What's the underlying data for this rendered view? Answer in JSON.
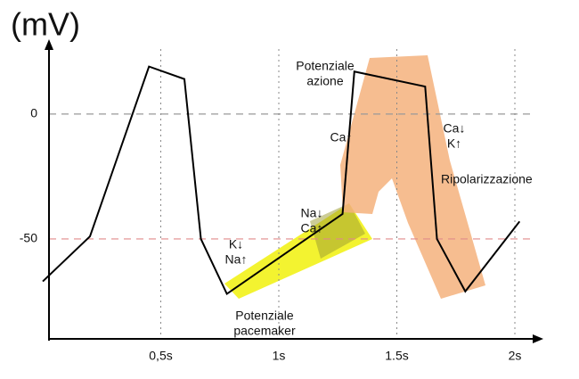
{
  "chart_data": {
    "type": "line",
    "y_label": "(mV)",
    "x": [
      0,
      0.2,
      0.45,
      0.6,
      0.67,
      0.78,
      1.27,
      1.32,
      1.62,
      1.67,
      1.79,
      2.02
    ],
    "series": [
      {
        "color": "#000000",
        "values": [
          -67,
          -49,
          19,
          14,
          -50,
          -72,
          -40,
          17,
          11,
          -50,
          -71,
          -43
        ]
      }
    ],
    "xlim": [
      0,
      2.1
    ],
    "ylim": [
      -90,
      26
    ],
    "xticks": [
      {
        "value": 0.5,
        "label": "0,5s"
      },
      {
        "value": 1,
        "label": "1s"
      },
      {
        "value": 1.5,
        "label": "1.5s"
      },
      {
        "value": 2,
        "label": "2s"
      }
    ],
    "yticks": [
      -50,
      0
    ],
    "grid": true,
    "ygrid_colors": [
      "#e08a8a",
      "#999999"
    ],
    "annotations": [
      {
        "lines": [
          "Potenziale",
          "azione"
        ]
      },
      {
        "lines": [
          "Ca↑"
        ]
      },
      {
        "lines": [
          "Ca↓",
          "K↑"
        ]
      },
      {
        "lines": [
          "Ripolarizzazione"
        ]
      },
      {
        "lines": [
          "K↓",
          "Na↑"
        ]
      },
      {
        "lines": [
          "Na↓",
          "Ca↑"
        ]
      },
      {
        "lines": [
          "Potenziale",
          "pacemaker"
        ]
      }
    ]
  }
}
